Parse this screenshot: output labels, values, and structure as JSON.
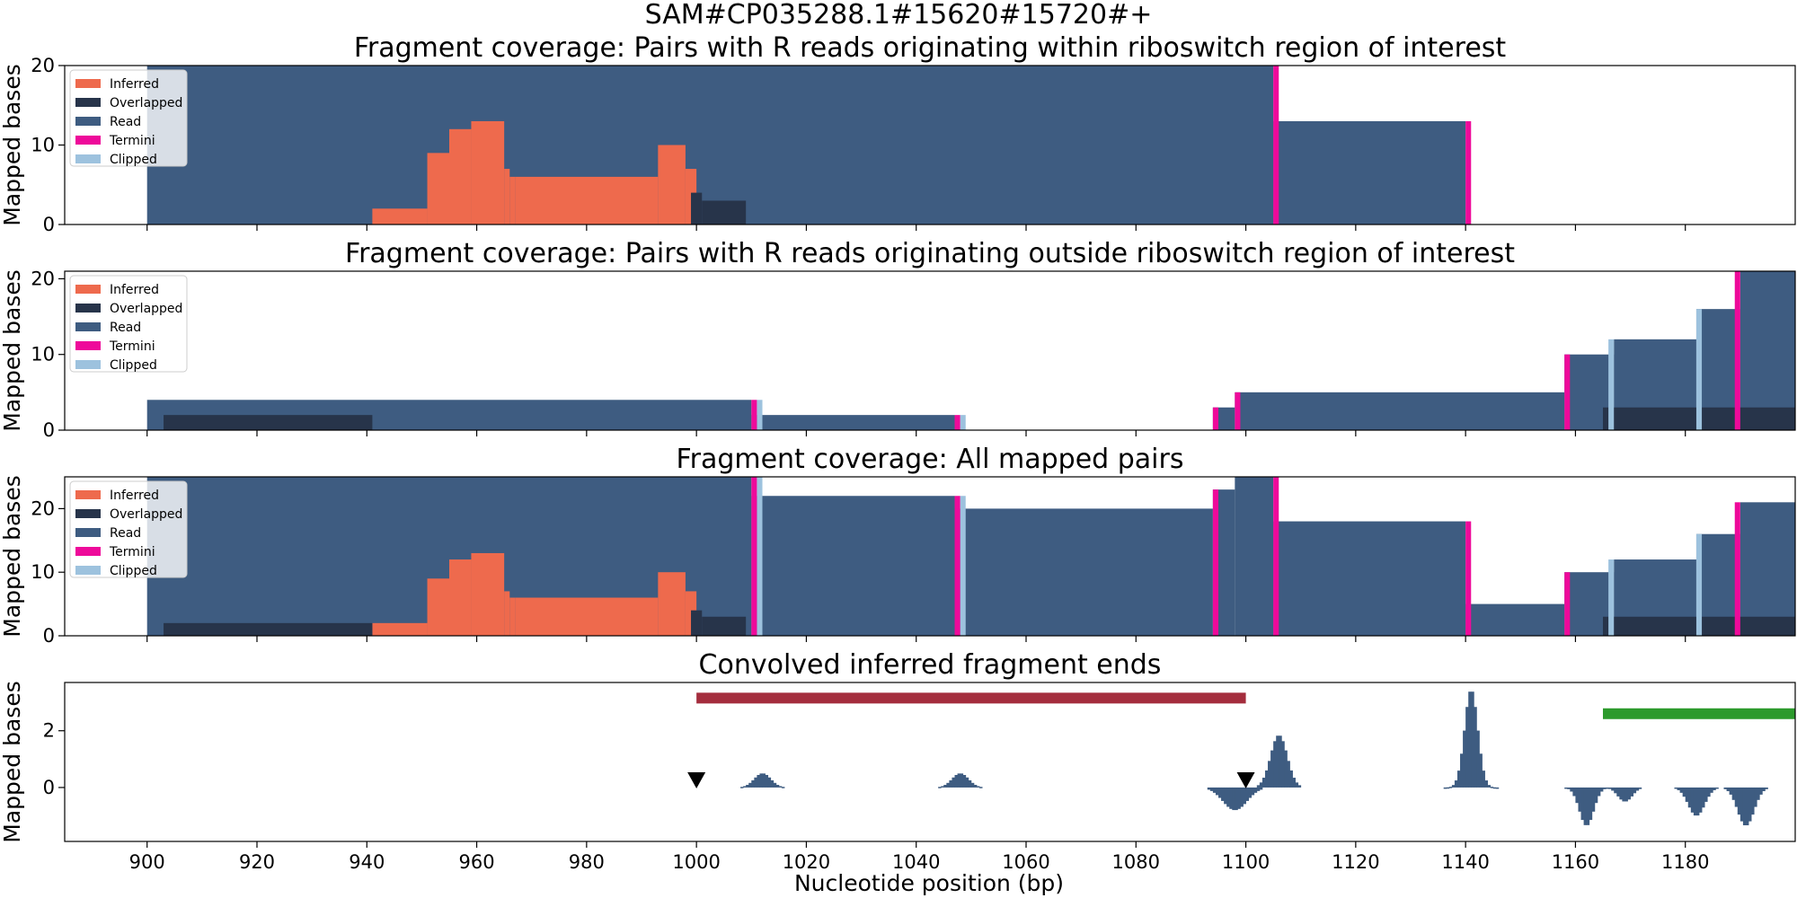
{
  "suptitle": "SAM#CP035288.1#15620#15720#+",
  "xlabel": "Nucleotide position (bp)",
  "ylabel": "Mapped bases",
  "xticks": [
    900,
    920,
    940,
    960,
    980,
    1000,
    1020,
    1040,
    1060,
    1080,
    1100,
    1120,
    1140,
    1160,
    1180
  ],
  "colors": {
    "inferred": "#ee6a4d",
    "overlapped": "#27344a",
    "read": "#3e5c81",
    "termini": "#ee0a9a",
    "clipped": "#9dc2de",
    "conv": "#3e5c81",
    "bar_red": "#a42d3d",
    "bar_green": "#2d9a2d"
  },
  "legend": [
    "Inferred",
    "Overlapped",
    "Read",
    "Termini",
    "Clipped"
  ],
  "chart_data": [
    {
      "type": "area",
      "title": "Fragment coverage: Pairs with R reads originating within riboswitch region of interest",
      "xlim": [
        885,
        1200
      ],
      "ylim": [
        0,
        20
      ],
      "yticks": [
        0,
        10,
        20
      ],
      "legend_position": "upper-left",
      "read": [
        [
          900,
          1105,
          20
        ],
        [
          1105,
          1140,
          13
        ]
      ],
      "inferred": [
        [
          941,
          951,
          2
        ],
        [
          951,
          955,
          9
        ],
        [
          955,
          959,
          12
        ],
        [
          959,
          965,
          13
        ],
        [
          965,
          966,
          7
        ],
        [
          966,
          967,
          6
        ],
        [
          967,
          993,
          6
        ],
        [
          993,
          998,
          10
        ],
        [
          998,
          1000,
          7
        ]
      ],
      "overlapped": [
        [
          999,
          1001,
          4
        ],
        [
          1001,
          1009,
          3
        ]
      ],
      "termini": [
        [
          1105,
          1106,
          20
        ],
        [
          1140,
          1141,
          13
        ]
      ],
      "clipped": []
    },
    {
      "type": "area",
      "title": "Fragment coverage: Pairs with R reads originating outside riboswitch region of interest",
      "xlim": [
        885,
        1200
      ],
      "ylim": [
        0,
        21
      ],
      "yticks": [
        0,
        10,
        20
      ],
      "legend_position": "upper-left",
      "read": [
        [
          900,
          1010,
          4
        ],
        [
          1010,
          1047,
          2
        ],
        [
          1094,
          1098,
          3
        ],
        [
          1098,
          1158,
          5
        ],
        [
          1158,
          1167,
          10
        ],
        [
          1167,
          1182,
          12
        ],
        [
          1182,
          1190,
          16
        ],
        [
          1190,
          1200,
          21
        ]
      ],
      "inferred": [],
      "overlapped": [
        [
          903,
          941,
          2
        ],
        [
          1165,
          1200,
          3
        ]
      ],
      "termini": [
        [
          1010,
          1011,
          4
        ],
        [
          1047,
          1048,
          2
        ],
        [
          1094,
          1095,
          3
        ],
        [
          1098,
          1099,
          5
        ],
        [
          1158,
          1159,
          10
        ],
        [
          1189,
          1190,
          21
        ]
      ],
      "clipped": [
        [
          1011,
          1012,
          4
        ],
        [
          1048,
          1049,
          2
        ],
        [
          1166,
          1167,
          12
        ],
        [
          1182,
          1183,
          16
        ]
      ]
    },
    {
      "type": "area",
      "title": "Fragment coverage: All mapped pairs",
      "xlim": [
        885,
        1200
      ],
      "ylim": [
        0,
        25
      ],
      "yticks": [
        0,
        10,
        20
      ],
      "legend_position": "upper-left",
      "read": [
        [
          900,
          1010,
          25
        ],
        [
          1010,
          1047,
          22
        ],
        [
          1047,
          1094,
          20
        ],
        [
          1094,
          1098,
          23
        ],
        [
          1098,
          1105,
          25
        ],
        [
          1105,
          1140,
          18
        ],
        [
          1140,
          1158,
          5
        ],
        [
          1158,
          1167,
          10
        ],
        [
          1167,
          1182,
          12
        ],
        [
          1182,
          1190,
          16
        ],
        [
          1190,
          1200,
          21
        ]
      ],
      "inferred": [
        [
          941,
          951,
          2
        ],
        [
          951,
          955,
          9
        ],
        [
          955,
          959,
          12
        ],
        [
          959,
          965,
          13
        ],
        [
          965,
          966,
          7
        ],
        [
          966,
          967,
          6
        ],
        [
          967,
          993,
          6
        ],
        [
          993,
          998,
          10
        ],
        [
          998,
          1000,
          7
        ]
      ],
      "overlapped": [
        [
          903,
          941,
          2
        ],
        [
          999,
          1001,
          4
        ],
        [
          1001,
          1009,
          3
        ],
        [
          1165,
          1200,
          3
        ]
      ],
      "termini": [
        [
          1010,
          1011,
          25
        ],
        [
          1047,
          1048,
          22
        ],
        [
          1094,
          1095,
          23
        ],
        [
          1105,
          1106,
          25
        ],
        [
          1140,
          1141,
          18
        ],
        [
          1158,
          1159,
          10
        ],
        [
          1189,
          1190,
          21
        ]
      ],
      "clipped": [
        [
          1011,
          1012,
          25
        ],
        [
          1048,
          1049,
          22
        ],
        [
          1166,
          1167,
          12
        ],
        [
          1182,
          1183,
          16
        ]
      ]
    },
    {
      "type": "bar",
      "title": "Convolved inferred fragment ends",
      "xlim": [
        885,
        1200
      ],
      "ylim": [
        -1.9,
        3.7
      ],
      "yticks": [
        0,
        2
      ],
      "peaks": [
        {
          "center": 1012,
          "amp": 0.5,
          "sigma": 1.5,
          "halfwidth": 4
        },
        {
          "center": 1048,
          "amp": 0.5,
          "sigma": 1.5,
          "halfwidth": 4
        },
        {
          "center": 1098,
          "amp": -0.8,
          "sigma": 2.2,
          "halfwidth": 5
        },
        {
          "center": 1106,
          "amp": 1.85,
          "sigma": 1.5,
          "halfwidth": 4
        },
        {
          "center": 1141,
          "amp": 3.45,
          "sigma": 1.2,
          "halfwidth": 5
        },
        {
          "center": 1162,
          "amp": -1.35,
          "sigma": 1.3,
          "halfwidth": 4
        },
        {
          "center": 1169,
          "amp": -0.5,
          "sigma": 1.3,
          "halfwidth": 3
        },
        {
          "center": 1182,
          "amp": -1.0,
          "sigma": 1.5,
          "halfwidth": 4
        },
        {
          "center": 1191,
          "amp": -1.35,
          "sigma": 1.5,
          "halfwidth": 4
        }
      ],
      "markers": [
        {
          "x": 1000,
          "y": 0.25
        },
        {
          "x": 1100,
          "y": 0.25
        }
      ],
      "bars": [
        {
          "x0": 1000,
          "x1": 1100,
          "y": 3.15,
          "color": "bar_red"
        },
        {
          "x0": 1165,
          "x1": 1200,
          "y": 2.6,
          "color": "bar_green"
        }
      ]
    }
  ]
}
